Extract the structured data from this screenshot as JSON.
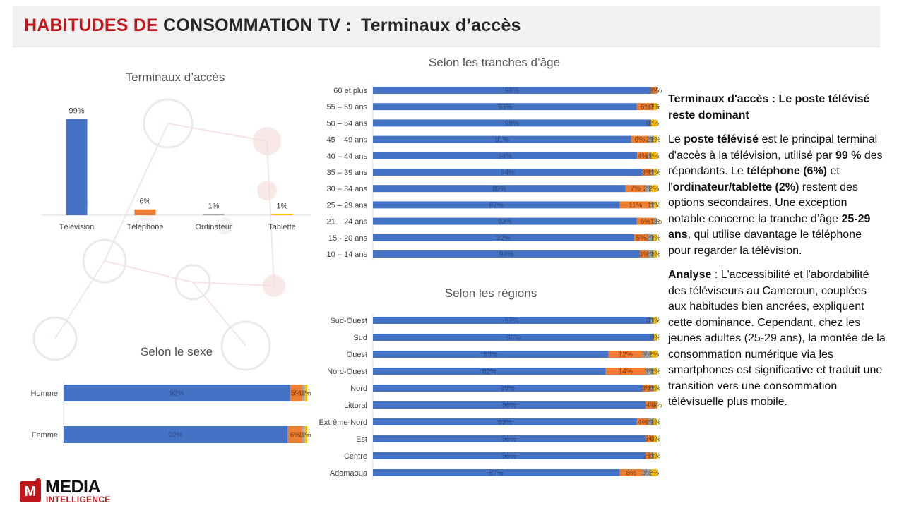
{
  "header": {
    "title_red": "HABITUDES DE",
    "title_dark": "CONSOMMATION TV :",
    "title_sub": "Terminaux d’accès"
  },
  "colors": {
    "television": "#4472c4",
    "telephone": "#ed7d31",
    "ordinateur": "#a5a5a5",
    "tablette": "#ffc000",
    "accent": "#c0161b"
  },
  "chart_data": [
    {
      "id": "terminaux",
      "type": "bar",
      "title": "Terminaux d’accès",
      "categories": [
        "Télévision",
        "Téléphone",
        "Ordinateur",
        "Tablette"
      ],
      "values": [
        99,
        6,
        1,
        1
      ],
      "labels": [
        "99%",
        "6%",
        "1%",
        "1%"
      ],
      "colors": [
        "#4472c4",
        "#ed7d31",
        "#a5a5a5",
        "#ffc000"
      ],
      "ylim": [
        0,
        100
      ]
    },
    {
      "id": "age",
      "type": "bar",
      "orientation": "horizontal-stacked",
      "title": "Selon les tranches d’âge",
      "categories": [
        "60 et plus",
        "55 – 59 ans",
        "50 – 54 ans",
        "45 – 49 ans",
        "40 – 44 ans",
        "35 – 39 ans",
        "30 – 34 ans",
        "25 – 29 ans",
        "21 – 24 ans",
        "15 - 20 ans",
        "10 – 14 ans"
      ],
      "series": [
        {
          "values": [
            98,
            93,
            98,
            91,
            94,
            94,
            89,
            87,
            93,
            92,
            94
          ]
        },
        {
          "values": [
            2,
            6,
            0,
            6,
            4,
            3,
            7,
            11,
            6,
            5,
            3
          ]
        },
        {
          "values": [
            0,
            0,
            0,
            2,
            1,
            1,
            2,
            1,
            1,
            2,
            2
          ]
        },
        {
          "values": [
            0,
            1,
            2,
            1,
            2,
            1,
            2,
            1,
            0,
            1,
            1
          ]
        }
      ],
      "labels": [
        [
          "98%",
          "2%",
          "0%",
          ""
        ],
        [
          "93%",
          "6%",
          "0%",
          "1%"
        ],
        [
          "98%",
          "0%",
          "",
          "2%"
        ],
        [
          "91%",
          "6%",
          "2%",
          "1%"
        ],
        [
          "94%",
          "4%",
          "1%",
          "2%"
        ],
        [
          "94%",
          "3%",
          "1%",
          "1%"
        ],
        [
          "89%",
          "7%",
          "2%",
          "2%"
        ],
        [
          "87%",
          "11%",
          "1%",
          "1%"
        ],
        [
          "93%",
          "6%",
          "1%",
          "0%"
        ],
        [
          "92%",
          "5%",
          "2%",
          "1%"
        ],
        [
          "94%",
          "3%",
          "2%",
          "1%"
        ]
      ]
    },
    {
      "id": "sexe",
      "type": "bar",
      "orientation": "horizontal-stacked",
      "title": "Selon le sexe",
      "categories": [
        "Homme",
        "Femme"
      ],
      "series": [
        {
          "values": [
            92,
            92
          ]
        },
        {
          "values": [
            5,
            6
          ]
        },
        {
          "values": [
            1,
            1
          ]
        },
        {
          "values": [
            1,
            1
          ]
        }
      ],
      "labels": [
        [
          "92%",
          "5%",
          "1%",
          "1%"
        ],
        [
          "92%",
          "6%",
          "1%",
          "1%"
        ]
      ]
    },
    {
      "id": "regions",
      "type": "bar",
      "orientation": "horizontal-stacked",
      "title": "Selon les régions",
      "categories": [
        "Sud-Ouest",
        "Sud",
        "Ouest",
        "Nord-Ouest",
        "Nord",
        "Littoral",
        "Extrême-Nord",
        "Est",
        "Centre",
        "Adamaoua"
      ],
      "series": [
        {
          "values": [
            97,
            98,
            83,
            82,
            95,
            96,
            93,
            96,
            96,
            87
          ]
        },
        {
          "values": [
            0,
            0,
            12,
            14,
            3,
            4,
            4,
            3,
            2,
            8
          ]
        },
        {
          "values": [
            1,
            0,
            3,
            3,
            1,
            0,
            2,
            0,
            1,
            3
          ]
        },
        {
          "values": [
            1,
            1,
            2,
            1,
            1,
            0,
            1,
            1,
            1,
            2
          ]
        }
      ],
      "labels": [
        [
          "97%",
          "0%",
          "1%",
          "1%"
        ],
        [
          "98%",
          "",
          "",
          "0%"
        ],
        [
          "83%",
          "12%",
          "3%",
          "2%"
        ],
        [
          "82%",
          "14%",
          "3%",
          "1%"
        ],
        [
          "95%",
          "3%",
          "1%",
          "1%"
        ],
        [
          "96%",
          "4%",
          "",
          "0%"
        ],
        [
          "93%",
          "4%",
          "2%",
          "1%"
        ],
        [
          "96%",
          "3%",
          "",
          "0%"
        ],
        [
          "96%",
          "2%",
          "1%",
          "1%"
        ],
        [
          "87%",
          "8%",
          "3%",
          "2%"
        ]
      ]
    }
  ],
  "sidebar": {
    "heading": "Terminaux d'accès : Le poste télévisé reste dominant",
    "p1_a": "Le ",
    "p1_b": "poste télévisé",
    "p1_c": " est le principal terminal d'accès à la télévision, utilisé par ",
    "p1_d": "99 %",
    "p1_e": " des répondants. Le ",
    "p1_f": "téléphone (6%)",
    "p1_g": " et l'",
    "p1_h": "ordinateur/tablette (2%)",
    "p1_i": " restent des options secondaires. Une exception notable concerne la tranche d’âge ",
    "p1_j": "25-29 ans",
    "p1_k": ", qui utilise davantage le téléphone pour regarder la télévision.",
    "p2_a": "Analyse",
    "p2_b": " : L'accessibilité et l'abordabilité des téléviseurs au Cameroun, couplées aux habitudes bien ancrées, expliquent cette dominance. Cependant, chez les jeunes adultes (25-29 ans), la montée de la consommation numérique via les smartphones est significative et traduit une transition vers une consommation télévisuelle  plus mobile."
  },
  "logo": {
    "mark": "M",
    "line1": "MEDIA",
    "line2": "INTELLIGENCE"
  }
}
